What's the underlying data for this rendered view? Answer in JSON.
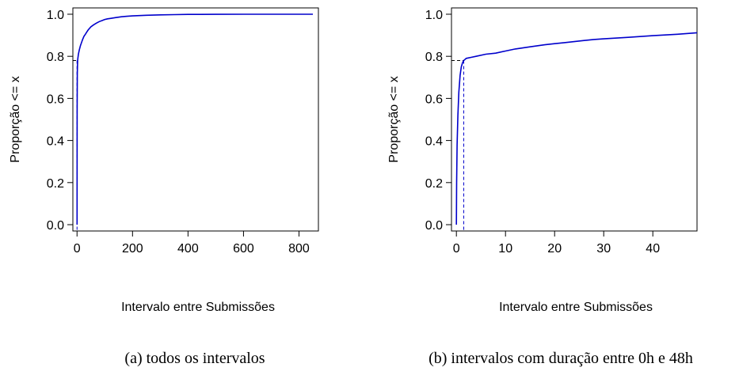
{
  "chart_data": [
    {
      "type": "line",
      "caption": "(a)  todos os intervalos",
      "xlabel": "Intervalo entre Submissões",
      "ylabel": "Proporção <= x",
      "xlim": [
        -15,
        870
      ],
      "ylim": [
        -0.03,
        1.03
      ],
      "xticks": [
        0,
        200,
        400,
        600,
        800
      ],
      "yticks": [
        0.0,
        0.2,
        0.4,
        0.6,
        0.8,
        1.0
      ],
      "ytick_labels": [
        "0.0",
        "0.2",
        "0.4",
        "0.6",
        "0.8",
        "1.0"
      ],
      "grid": false,
      "line_color": "#0000cc",
      "series": [
        {
          "x": [
            0,
            0.5,
            1,
            2,
            3,
            5,
            8,
            12,
            16,
            20,
            25,
            30,
            35,
            40,
            50,
            60,
            70,
            80,
            90,
            100,
            110,
            120,
            140,
            160,
            180,
            200,
            250,
            300,
            350,
            400,
            500,
            600,
            700,
            850
          ],
          "y": [
            0.0,
            0.55,
            0.72,
            0.78,
            0.79,
            0.81,
            0.83,
            0.85,
            0.865,
            0.88,
            0.895,
            0.905,
            0.915,
            0.925,
            0.94,
            0.95,
            0.958,
            0.965,
            0.97,
            0.975,
            0.978,
            0.98,
            0.984,
            0.988,
            0.99,
            0.992,
            0.995,
            0.997,
            0.998,
            0.999,
            0.9995,
            0.9998,
            1.0,
            1.0
          ]
        }
      ],
      "reference": {
        "x": 0,
        "y": 0.78
      }
    },
    {
      "type": "line",
      "caption": "(b)  intervalos com duração entre 0h e 48h",
      "xlabel": "Intervalo entre Submissões",
      "ylabel": "Proporção <= x",
      "xlim": [
        -1,
        49
      ],
      "ylim": [
        -0.03,
        1.03
      ],
      "xticks": [
        0,
        10,
        20,
        30,
        40
      ],
      "yticks": [
        0.0,
        0.2,
        0.4,
        0.6,
        0.8,
        1.0
      ],
      "ytick_labels": [
        "0.0",
        "0.2",
        "0.4",
        "0.6",
        "0.8",
        "1.0"
      ],
      "grid": false,
      "line_color": "#0000cc",
      "series": [
        {
          "x": [
            0,
            0.05,
            0.15,
            0.3,
            0.5,
            0.75,
            1.0,
            1.25,
            1.5,
            1.75,
            2.0,
            3,
            4,
            6,
            8,
            10,
            12,
            15,
            18,
            20,
            22,
            24,
            26,
            28,
            30,
            35,
            40,
            45,
            49
          ],
          "y": [
            0.0,
            0.2,
            0.38,
            0.52,
            0.63,
            0.71,
            0.75,
            0.77,
            0.78,
            0.785,
            0.79,
            0.795,
            0.8,
            0.81,
            0.815,
            0.825,
            0.835,
            0.845,
            0.855,
            0.86,
            0.865,
            0.87,
            0.875,
            0.88,
            0.883,
            0.89,
            0.898,
            0.905,
            0.912
          ]
        }
      ],
      "reference": {
        "x": 1.5,
        "y": 0.78
      }
    }
  ]
}
